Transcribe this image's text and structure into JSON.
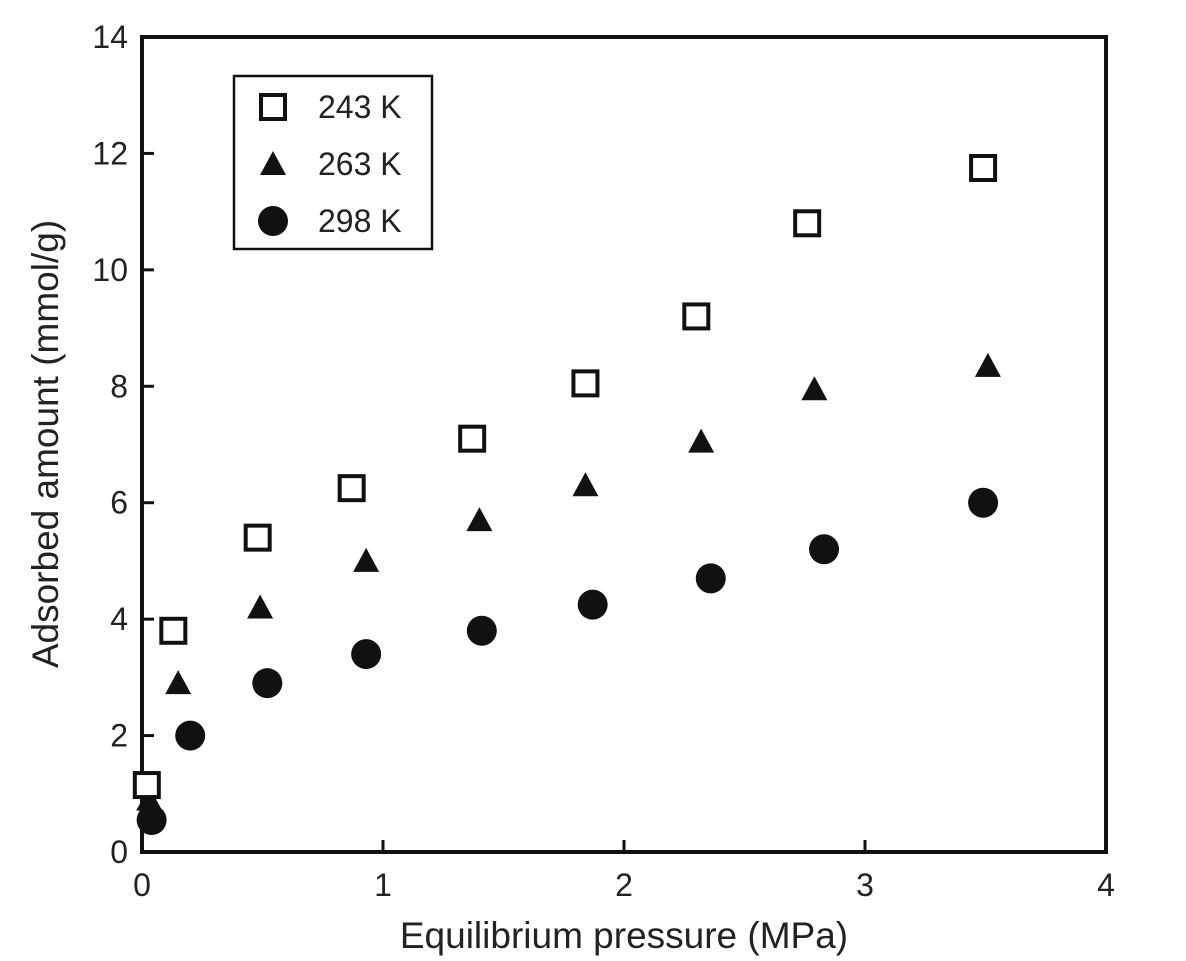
{
  "chart_data": {
    "type": "scatter",
    "title": "",
    "xlabel": "Equilibrium pressure (MPa)",
    "ylabel": "Adsorbed amount (mmol/g)",
    "xlim": [
      0,
      4
    ],
    "ylim": [
      0,
      14
    ],
    "xticks": [
      "0",
      "1",
      "2",
      "3",
      "4"
    ],
    "yticks": [
      "0",
      "2",
      "4",
      "6",
      "8",
      "10",
      "12",
      "14"
    ],
    "grid": false,
    "legend_position": "top-left",
    "series": [
      {
        "name": "243 K",
        "marker": "open-square",
        "color": "#111111",
        "x": [
          0.02,
          0.13,
          0.48,
          0.87,
          1.37,
          1.84,
          2.3,
          2.76,
          3.49
        ],
        "y": [
          1.15,
          3.8,
          5.4,
          6.25,
          7.1,
          8.05,
          9.2,
          10.8,
          11.75
        ]
      },
      {
        "name": "263 K",
        "marker": "filled-triangle",
        "color": "#111111",
        "x": [
          0.03,
          0.15,
          0.49,
          0.93,
          1.4,
          1.84,
          2.32,
          2.79,
          3.51
        ],
        "y": [
          0.9,
          2.9,
          4.2,
          5.0,
          5.7,
          6.3,
          7.05,
          7.95,
          8.35
        ]
      },
      {
        "name": "298 K",
        "marker": "filled-circle",
        "color": "#111111",
        "x": [
          0.04,
          0.2,
          0.52,
          0.93,
          1.41,
          1.87,
          2.36,
          2.83,
          3.49
        ],
        "y": [
          0.55,
          2.0,
          2.9,
          3.4,
          3.8,
          4.25,
          4.7,
          5.2,
          6.0
        ]
      }
    ]
  }
}
